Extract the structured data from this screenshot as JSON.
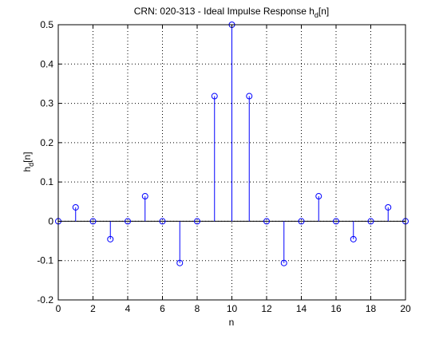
{
  "chart_data": {
    "type": "stem",
    "title": "CRN: 020-313 - Ideal Impulse Response h",
    "title_sub": "d",
    "title_suffix": "[n]",
    "xlabel": "n",
    "ylabel": "h",
    "ylabel_sub": "d",
    "ylabel_suffix": "[n]",
    "xlim": [
      0,
      20
    ],
    "ylim": [
      -0.2,
      0.5
    ],
    "xticks": [
      0,
      2,
      4,
      6,
      8,
      10,
      12,
      14,
      16,
      18,
      20
    ],
    "yticks": [
      -0.2,
      -0.1,
      0,
      0.1,
      0.2,
      0.3,
      0.4,
      0.5
    ],
    "grid": true,
    "color": "#0000ff",
    "n": [
      0,
      1,
      2,
      3,
      4,
      5,
      6,
      7,
      8,
      9,
      10,
      11,
      12,
      13,
      14,
      15,
      16,
      17,
      18,
      19,
      20
    ],
    "values": [
      0,
      0.0354,
      0,
      -0.0455,
      0,
      0.0637,
      0,
      -0.1061,
      0,
      0.3183,
      0.5,
      0.3183,
      0,
      -0.1061,
      0,
      0.0637,
      0,
      -0.0455,
      0,
      0.0354,
      0
    ]
  }
}
